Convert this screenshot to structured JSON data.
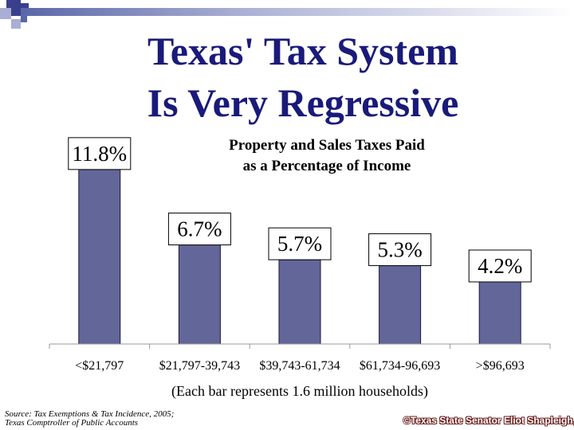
{
  "slide": {
    "title_line1": "Texas' Tax System",
    "title_line2": "Is Very Regressive",
    "source_line1": "Source:  Tax Exemptions & Tax Incidence, 2005;",
    "source_line2": "Texas Comptroller of Public Accounts",
    "copyright": "©Texas State Senator Eliot Shapleigh,"
  },
  "colors": {
    "title": "#1a1a7a",
    "bar": "#636699",
    "decor_dark": "#3a3f8c",
    "decor_light": "#a9aed6"
  },
  "chart_data": {
    "type": "bar",
    "title_line1": "Property and Sales Taxes Paid",
    "title_line2": "as a Percentage of Income",
    "categories": [
      "<$21,797",
      "$21,797-39,743",
      "$39,743-61,734",
      "$61,734-96,693",
      ">$96,693"
    ],
    "values": [
      11.8,
      6.7,
      5.7,
      5.3,
      4.2
    ],
    "data_labels": [
      "11.8%",
      "6.7%",
      "5.7%",
      "5.3%",
      "4.2%"
    ],
    "xlabel": "(Each bar represents 1.6 million households)",
    "ylabel": "",
    "ylim": [
      0,
      12.6
    ],
    "grid": false,
    "legend": "none"
  }
}
